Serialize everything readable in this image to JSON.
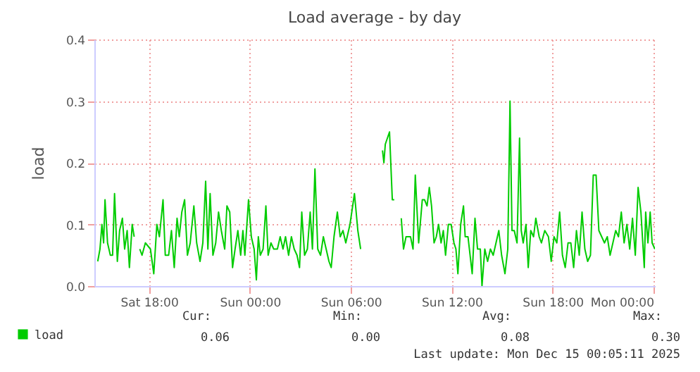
{
  "chart_data": {
    "type": "line",
    "title": "Load average - by day",
    "ylabel": "load",
    "xlim": [
      "2025-12-13T14:45",
      "2025-12-15T00:05"
    ],
    "xticks": [
      {
        "value": "2025-12-13T18:00",
        "label": "Sat 18:00"
      },
      {
        "value": "2025-12-14T00:00",
        "label": "Sun 00:00"
      },
      {
        "value": "2025-12-14T06:00",
        "label": "Sun 06:00"
      },
      {
        "value": "2025-12-14T12:00",
        "label": "Sun 12:00"
      },
      {
        "value": "2025-12-14T18:00",
        "label": "Sun 18:00"
      },
      {
        "value": "2025-12-15T00:00",
        "label": "Mon 00:00"
      }
    ],
    "ylim": [
      0,
      0.4
    ],
    "yticks": [
      {
        "value": 0,
        "label": "0.0"
      },
      0.1,
      0.2,
      0.3,
      0.4
    ],
    "grid": true,
    "legend": "bottom left",
    "annotations": [
      "Cur:",
      "0.06",
      "Min:",
      "0.00",
      "Avg:",
      "0.08",
      "Max:",
      "0.30",
      "Last update: Mon Dec 15 00:05:11 2025"
    ],
    "x": [
      "2025-12-13T14:57",
      "2025-12-13T15:05",
      "2025-12-13T15:12",
      "2025-12-13T15:18",
      "2025-12-13T15:23",
      "2025-12-13T15:32",
      "2025-12-13T15:42",
      "2025-12-13T15:50",
      "2025-12-13T15:57",
      "2025-12-13T16:07",
      "2025-12-13T16:15",
      "2025-12-13T16:25",
      "2025-12-13T16:33",
      "2025-12-13T16:42",
      "2025-12-13T16:50",
      "2025-12-13T17:00",
      "2025-12-13T17:07",
      "2025-12-13T17:12",
      "2025-12-13T17:27",
      "2025-12-13T17:35",
      "2025-12-13T17:47",
      "2025-12-13T18:05",
      "2025-12-13T18:17",
      "2025-12-13T18:28",
      "2025-12-13T18:37",
      "2025-12-13T18:50",
      "2025-12-13T18:58",
      "2025-12-13T19:10",
      "2025-12-13T19:20",
      "2025-12-13T19:30",
      "2025-12-13T19:40",
      "2025-12-13T19:48",
      "2025-12-13T19:57",
      "2025-12-13T20:07",
      "2025-12-13T20:17",
      "2025-12-13T20:27",
      "2025-12-13T20:40",
      "2025-12-13T20:50",
      "2025-12-13T21:02",
      "2025-12-13T21:12",
      "2025-12-13T21:22",
      "2025-12-13T21:30",
      "2025-12-13T21:38",
      "2025-12-13T21:48",
      "2025-12-13T21:58",
      "2025-12-13T22:08",
      "2025-12-13T22:18",
      "2025-12-13T22:30",
      "2025-12-13T22:38",
      "2025-12-13T22:48",
      "2025-12-13T22:58",
      "2025-12-13T23:07",
      "2025-12-13T23:17",
      "2025-12-13T23:27",
      "2025-12-13T23:35",
      "2025-12-13T23:42",
      "2025-12-13T23:55",
      "2025-12-14T00:05",
      "2025-12-14T00:15",
      "2025-12-14T00:23",
      "2025-12-14T00:30",
      "2025-12-14T00:37",
      "2025-12-14T00:47",
      "2025-12-14T00:57",
      "2025-12-14T01:05",
      "2025-12-14T01:15",
      "2025-12-14T01:25",
      "2025-12-14T01:38",
      "2025-12-14T01:48",
      "2025-12-14T01:58",
      "2025-12-14T02:07",
      "2025-12-14T02:18",
      "2025-12-14T02:28",
      "2025-12-14T02:38",
      "2025-12-14T02:48",
      "2025-12-14T02:57",
      "2025-12-14T03:05",
      "2025-12-14T03:15",
      "2025-12-14T03:25",
      "2025-12-14T03:35",
      "2025-12-14T03:43",
      "2025-12-14T03:52",
      "2025-12-14T04:02",
      "2025-12-14T04:12",
      "2025-12-14T04:22",
      "2025-12-14T04:32",
      "2025-12-14T04:42",
      "2025-12-14T04:50",
      "2025-12-14T05:00",
      "2025-12-14T05:12",
      "2025-12-14T05:22",
      "2025-12-14T05:32",
      "2025-12-14T05:42",
      "2025-12-14T05:57",
      "2025-12-14T06:13",
      "2025-12-14T06:25",
      "2025-12-14T06:35",
      "2025-12-14T06:50",
      "2025-12-14T07:53",
      "2025-12-14T07:58",
      "2025-12-14T08:03",
      "2025-12-14T08:18",
      "2025-12-14T08:28",
      "2025-12-14T08:35",
      "2025-12-14T08:45",
      "2025-12-14T09:00",
      "2025-12-14T09:08",
      "2025-12-14T09:17",
      "2025-12-14T09:25",
      "2025-12-14T09:33",
      "2025-12-14T09:42",
      "2025-12-14T09:50",
      "2025-12-14T10:02",
      "2025-12-14T10:15",
      "2025-12-14T10:23",
      "2025-12-14T10:32",
      "2025-12-14T10:40",
      "2025-12-14T10:48",
      "2025-12-14T10:57",
      "2025-12-14T11:05",
      "2025-12-14T11:13",
      "2025-12-14T11:22",
      "2025-12-14T11:30",
      "2025-12-14T11:38",
      "2025-12-14T11:48",
      "2025-12-14T11:58",
      "2025-12-14T12:08",
      "2025-12-14T12:15",
      "2025-12-14T12:22",
      "2025-12-14T12:32",
      "2025-12-14T12:42",
      "2025-12-14T12:48",
      "2025-12-14T12:58",
      "2025-12-14T13:13",
      "2025-12-14T13:23",
      "2025-12-14T13:32",
      "2025-12-14T13:42",
      "2025-12-14T13:48",
      "2025-12-14T13:58",
      "2025-12-14T14:08",
      "2025-12-14T14:18",
      "2025-12-14T14:28",
      "2025-12-14T14:38",
      "2025-12-14T14:48",
      "2025-12-14T14:58",
      "2025-12-14T15:10",
      "2025-12-14T15:20",
      "2025-12-14T15:28",
      "2025-12-14T15:35",
      "2025-12-14T15:43",
      "2025-12-14T15:53",
      "2025-12-14T16:02",
      "2025-12-14T16:08",
      "2025-12-14T16:15",
      "2025-12-14T16:25",
      "2025-12-14T16:33",
      "2025-12-14T16:42",
      "2025-12-14T16:52",
      "2025-12-14T17:00",
      "2025-12-14T17:12",
      "2025-12-14T17:20",
      "2025-12-14T17:32",
      "2025-12-14T17:45",
      "2025-12-14T17:55",
      "2025-12-14T18:05",
      "2025-12-14T18:15",
      "2025-12-14T18:25",
      "2025-12-14T18:35",
      "2025-12-14T18:45",
      "2025-12-14T18:55",
      "2025-12-14T19:05",
      "2025-12-14T19:15",
      "2025-12-14T19:25",
      "2025-12-14T19:35",
      "2025-12-14T19:45",
      "2025-12-14T19:55",
      "2025-12-14T20:05",
      "2025-12-14T20:15",
      "2025-12-14T20:25",
      "2025-12-14T20:35",
      "2025-12-14T20:45",
      "2025-12-14T20:55",
      "2025-12-14T21:05",
      "2025-12-14T21:15",
      "2025-12-14T21:25",
      "2025-12-14T21:35",
      "2025-12-14T21:45",
      "2025-12-14T21:55",
      "2025-12-14T22:05",
      "2025-12-14T22:15",
      "2025-12-14T22:25",
      "2025-12-14T22:35",
      "2025-12-14T22:45",
      "2025-12-14T22:55",
      "2025-12-14T23:05",
      "2025-12-14T23:15",
      "2025-12-14T23:27",
      "2025-12-14T23:32",
      "2025-12-14T23:40",
      "2025-12-14T23:48",
      "2025-12-14T23:55",
      "2025-12-15T00:05"
    ],
    "series": [
      {
        "name": "load",
        "color": "#00cc00",
        "values": [
          0.04,
          0.06,
          0.1,
          0.07,
          0.14,
          0.07,
          0.05,
          0.05,
          0.15,
          0.04,
          0.09,
          0.11,
          0.06,
          0.09,
          0.03,
          0.1,
          0.08,
          null,
          0.06,
          0.05,
          0.07,
          0.06,
          0.02,
          0.1,
          0.08,
          0.14,
          0.05,
          0.05,
          0.09,
          0.03,
          0.11,
          0.08,
          0.12,
          0.14,
          0.05,
          0.07,
          0.13,
          0.07,
          0.04,
          0.07,
          0.17,
          0.06,
          0.15,
          0.05,
          0.07,
          0.12,
          0.09,
          0.06,
          0.13,
          0.12,
          0.03,
          0.06,
          0.09,
          0.05,
          0.09,
          0.05,
          0.14,
          0.08,
          0.06,
          0.01,
          0.08,
          0.05,
          0.06,
          0.13,
          0.05,
          0.07,
          0.06,
          0.06,
          0.08,
          0.06,
          0.08,
          0.05,
          0.08,
          0.06,
          0.05,
          0.03,
          0.12,
          0.05,
          0.06,
          0.12,
          0.06,
          0.19,
          0.06,
          0.05,
          0.08,
          0.06,
          0.04,
          0.03,
          0.08,
          0.12,
          0.08,
          0.09,
          0.07,
          0.1,
          0.15,
          0.09,
          0.06,
          null,
          0.22,
          0.2,
          0.23,
          0.25,
          0.14,
          0.14,
          null,
          0.11,
          0.06,
          0.08,
          0.08,
          0.08,
          0.06,
          0.18,
          0.07,
          0.14,
          0.14,
          0.13,
          0.16,
          0.13,
          0.07,
          0.08,
          0.1,
          0.07,
          0.09,
          0.05,
          0.1,
          0.1,
          0.07,
          0.06,
          0.02,
          0.1,
          0.13,
          0.08,
          0.08,
          0.02,
          0.11,
          0.06,
          0.06,
          0.0,
          0.06,
          0.04,
          0.06,
          0.05,
          0.07,
          0.09,
          0.05,
          0.02,
          0.06,
          0.3,
          0.09,
          0.09,
          0.07,
          0.24,
          0.09,
          0.07,
          0.1,
          0.03,
          0.09,
          0.08,
          0.11,
          0.08,
          0.07,
          0.09,
          0.08,
          0.04,
          0.08,
          0.07,
          0.12,
          0.05,
          0.03,
          0.07,
          0.07,
          0.03,
          0.09,
          0.05,
          0.12,
          0.06,
          0.04,
          0.05,
          0.18,
          0.18,
          0.09,
          0.08,
          0.07,
          0.08,
          0.05,
          0.07,
          0.09,
          0.08,
          0.12,
          0.07,
          0.1,
          0.06,
          0.11,
          0.05,
          0.16,
          0.12,
          0.03,
          0.12,
          0.07,
          0.12,
          0.07,
          0.06
        ]
      }
    ]
  }
}
